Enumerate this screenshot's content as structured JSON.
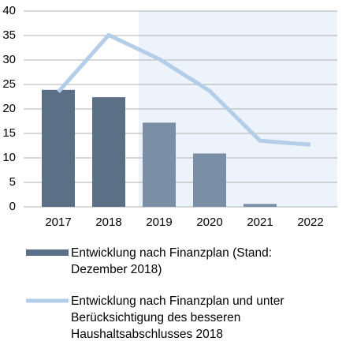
{
  "chart_data": {
    "type": "bar_line",
    "categories": [
      "2017",
      "2018",
      "2019",
      "2020",
      "2021",
      "2022"
    ],
    "series": [
      {
        "name": "Entwicklung nach Finanzplan (Stand: Dezember 2018)",
        "type": "bar",
        "color": "#5b6f86",
        "colors": [
          "#5b6f86",
          "#5b6f86",
          "#7a8ea6",
          "#7a8ea6",
          "#7a8ea6",
          "#7a8ea6"
        ],
        "values": [
          23.9,
          22.4,
          17.2,
          10.9,
          0.6,
          0
        ]
      },
      {
        "name": "Entwicklung nach Finanzplan und unter Berücksichtigung des besseren Haushaltsabschlusses 2018",
        "type": "line",
        "color": "#b4cde8",
        "values": [
          23.5,
          35.1,
          30.2,
          23.7,
          13.5,
          12.7
        ]
      }
    ],
    "ylim": [
      0,
      40
    ],
    "yticks": [
      0,
      5,
      10,
      15,
      20,
      25,
      30,
      35,
      40
    ],
    "grid": true
  }
}
